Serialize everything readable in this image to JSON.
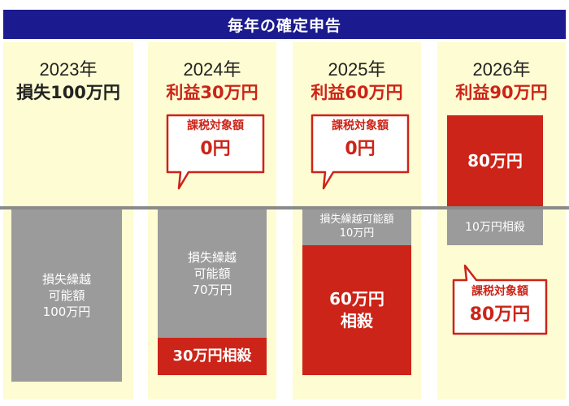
{
  "title": "毎年の確定申告",
  "colors": {
    "header_bg": "#1b1b8f",
    "column_bg": "#fefcd2",
    "gray": "#9b9b9b",
    "red": "#cc2418",
    "baseline": "#8a8a8a"
  },
  "columns": [
    {
      "year": "2023年",
      "result": "損失100万円",
      "carry_forward": "損失繰越\n可能額\n100万円"
    },
    {
      "year": "2024年",
      "result": "利益30万円",
      "bubble": {
        "title": "課税対象額",
        "value": "0円"
      },
      "carry_forward": "損失繰越\n可能額\n70万円",
      "offset": "30万円相殺"
    },
    {
      "year": "2025年",
      "result": "利益60万円",
      "bubble": {
        "title": "課税対象額",
        "value": "0円"
      },
      "carry_forward": "損失繰越可能額\n10万円",
      "offset": "60万円\n相殺"
    },
    {
      "year": "2026年",
      "result": "利益90万円",
      "taxable_block": "80万円",
      "offset": "10万円相殺",
      "bubble": {
        "title": "課税対象額",
        "value": "80万円"
      }
    }
  ]
}
